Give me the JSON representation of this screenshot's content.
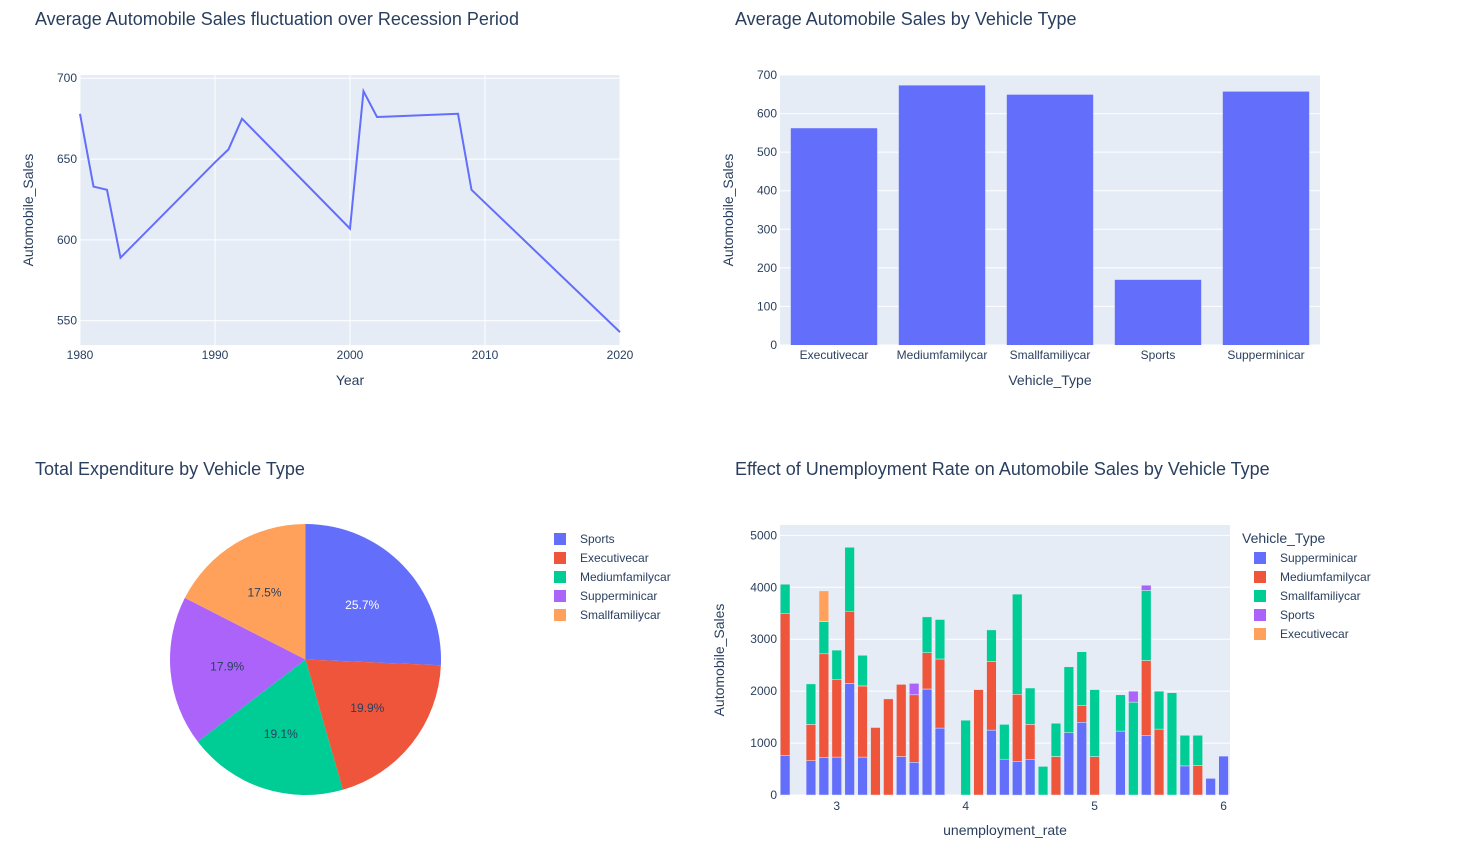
{
  "colors": {
    "plot_bg": "#e5ecf6",
    "grid": "#ffffff",
    "blue": "#636efa",
    "red": "#ef553b",
    "green": "#00cc96",
    "purple": "#ab63fa",
    "orange": "#ffa15a"
  },
  "chart_data": [
    {
      "type": "line",
      "title": "Average Automobile Sales fluctuation over Recession Period",
      "xlabel": "Year",
      "ylabel": "Automobile_Sales",
      "xlim": [
        1980,
        2020
      ],
      "ylim": [
        535,
        702
      ],
      "xticks": [
        1980,
        1990,
        2000,
        2010,
        2020
      ],
      "yticks": [
        550,
        600,
        650,
        700
      ],
      "grid": true,
      "series": [
        {
          "color": "#636efa",
          "x": [
            1980,
            1981,
            1982,
            1983,
            1990,
            1991,
            1992,
            2000,
            2001,
            2002,
            2008,
            2009,
            2020
          ],
          "y": [
            678,
            633,
            631,
            589,
            648,
            656,
            675,
            607,
            692,
            676,
            678,
            631,
            543
          ]
        }
      ]
    },
    {
      "type": "bar",
      "title": "Average Automobile Sales by Vehicle Type",
      "xlabel": "Vehicle_Type",
      "ylabel": "Automobile_Sales",
      "ylim": [
        0,
        700
      ],
      "yticks": [
        0,
        100,
        200,
        300,
        400,
        500,
        600,
        700
      ],
      "grid": true,
      "categories": [
        "Executivecar",
        "Mediumfamilycar",
        "Smallfamiliycar",
        "Sports",
        "Supperminicar"
      ],
      "values": [
        562,
        673,
        649,
        169,
        657
      ],
      "color": "#636efa"
    },
    {
      "type": "pie",
      "title": "Total Expenditure by Vehicle Type",
      "legend_position": "right",
      "labels": [
        "Sports",
        "Executivecar",
        "Mediumfamilycar",
        "Supperminicar",
        "Smallfamiliycar"
      ],
      "values": [
        25.7,
        19.9,
        19.1,
        17.9,
        17.5
      ],
      "colors": [
        "#636efa",
        "#ef553b",
        "#00cc96",
        "#ab63fa",
        "#ffa15a"
      ],
      "slice_labels": [
        "25.7%",
        "19.9%",
        "19.1%",
        "17.9%",
        "17.5%"
      ]
    },
    {
      "type": "bar",
      "stacked": true,
      "title": "Effect of Unemployment Rate on Automobile Sales by Vehicle Type",
      "xlabel": "unemployment_rate",
      "ylabel": "Automobile_Sales",
      "xlim": [
        2.56,
        6.05
      ],
      "ylim": [
        0,
        5200
      ],
      "xticks": [
        3,
        4,
        5,
        6
      ],
      "yticks": [
        0,
        1000,
        2000,
        3000,
        4000,
        5000
      ],
      "bar_width": 0.075,
      "legend_title": "Vehicle_Type",
      "legend_position": "right",
      "legend": [
        "Supperminicar",
        "Mediumfamilycar",
        "Smallfamiliycar",
        "Sports",
        "Executivecar"
      ],
      "legend_colors": [
        "#636efa",
        "#ef553b",
        "#00cc96",
        "#ab63fa",
        "#ffa15a"
      ],
      "colors_by_type": {
        "Supperminicar": "#636efa",
        "Mediumfamilycar": "#ef553b",
        "Smallfamiliycar": "#00cc96",
        "Sports": "#ab63fa",
        "Executivecar": "#ffa15a"
      },
      "bars": [
        {
          "x": 2.6,
          "stacks": [
            [
              "Supperminicar",
              760
            ],
            [
              "Mediumfamilycar",
              2740
            ],
            [
              "Smallfamiliycar",
              560
            ]
          ]
        },
        {
          "x": 2.8,
          "stacks": [
            [
              "Supperminicar",
              660
            ],
            [
              "Mediumfamilycar",
              700
            ],
            [
              "Smallfamiliycar",
              780
            ]
          ]
        },
        {
          "x": 2.9,
          "stacks": [
            [
              "Supperminicar",
              720
            ],
            [
              "Mediumfamilycar",
              2000
            ],
            [
              "Smallfamiliycar",
              620
            ],
            [
              "Executivecar",
              590
            ]
          ]
        },
        {
          "x": 3.0,
          "stacks": [
            [
              "Supperminicar",
              730
            ],
            [
              "Mediumfamilycar",
              1490
            ],
            [
              "Smallfamiliycar",
              570
            ]
          ]
        },
        {
          "x": 3.1,
          "stacks": [
            [
              "Supperminicar",
              2150
            ],
            [
              "Mediumfamilycar",
              1390
            ],
            [
              "Smallfamiliycar",
              1230
            ]
          ]
        },
        {
          "x": 3.2,
          "stacks": [
            [
              "Supperminicar",
              730
            ],
            [
              "Mediumfamilycar",
              1370
            ],
            [
              "Smallfamiliycar",
              590
            ]
          ]
        },
        {
          "x": 3.3,
          "stacks": [
            [
              "Mediumfamilycar",
              1300
            ]
          ]
        },
        {
          "x": 3.4,
          "stacks": [
            [
              "Mediumfamilycar",
              1850
            ]
          ]
        },
        {
          "x": 3.5,
          "stacks": [
            [
              "Supperminicar",
              740
            ],
            [
              "Mediumfamilycar",
              1390
            ]
          ]
        },
        {
          "x": 3.6,
          "stacks": [
            [
              "Supperminicar",
              630
            ],
            [
              "Mediumfamilycar",
              1300
            ],
            [
              "Sports",
              220
            ]
          ]
        },
        {
          "x": 3.7,
          "stacks": [
            [
              "Supperminicar",
              2040
            ],
            [
              "Mediumfamilycar",
              700
            ],
            [
              "Smallfamiliycar",
              690
            ]
          ]
        },
        {
          "x": 3.8,
          "stacks": [
            [
              "Supperminicar",
              1290
            ],
            [
              "Mediumfamilycar",
              1330
            ],
            [
              "Smallfamiliycar",
              760
            ]
          ]
        },
        {
          "x": 4.0,
          "stacks": [
            [
              "Smallfamiliycar",
              1440
            ]
          ]
        },
        {
          "x": 4.1,
          "stacks": [
            [
              "Mediumfamilycar",
              2030
            ]
          ]
        },
        {
          "x": 4.2,
          "stacks": [
            [
              "Supperminicar",
              1250
            ],
            [
              "Mediumfamilycar",
              1320
            ],
            [
              "Smallfamiliycar",
              610
            ]
          ]
        },
        {
          "x": 4.3,
          "stacks": [
            [
              "Supperminicar",
              690
            ],
            [
              "Smallfamiliycar",
              670
            ]
          ]
        },
        {
          "x": 4.4,
          "stacks": [
            [
              "Supperminicar",
              650
            ],
            [
              "Mediumfamilycar",
              1290
            ],
            [
              "Smallfamiliycar",
              1930
            ]
          ]
        },
        {
          "x": 4.5,
          "stacks": [
            [
              "Supperminicar",
              680
            ],
            [
              "Mediumfamilycar",
              680
            ],
            [
              "Smallfamiliycar",
              700
            ]
          ]
        },
        {
          "x": 4.6,
          "stacks": [
            [
              "Smallfamiliycar",
              550
            ]
          ]
        },
        {
          "x": 4.7,
          "stacks": [
            [
              "Mediumfamilycar",
              740
            ],
            [
              "Smallfamiliycar",
              640
            ]
          ]
        },
        {
          "x": 4.8,
          "stacks": [
            [
              "Supperminicar",
              1200
            ],
            [
              "Smallfamiliycar",
              1270
            ]
          ]
        },
        {
          "x": 4.9,
          "stacks": [
            [
              "Supperminicar",
              1400
            ],
            [
              "Mediumfamilycar",
              320
            ],
            [
              "Smallfamiliycar",
              1040
            ]
          ]
        },
        {
          "x": 5.0,
          "stacks": [
            [
              "Mediumfamilycar",
              740
            ],
            [
              "Smallfamiliycar",
              1290
            ]
          ]
        },
        {
          "x": 5.2,
          "stacks": [
            [
              "Supperminicar",
              1230
            ],
            [
              "Smallfamiliycar",
              700
            ]
          ]
        },
        {
          "x": 5.3,
          "stacks": [
            [
              "Smallfamiliycar",
              1790
            ],
            [
              "Sports",
              210
            ]
          ]
        },
        {
          "x": 5.4,
          "stacks": [
            [
              "Supperminicar",
              1150
            ],
            [
              "Mediumfamilycar",
              1440
            ],
            [
              "Smallfamiliycar",
              1350
            ],
            [
              "Sports",
              100
            ]
          ]
        },
        {
          "x": 5.5,
          "stacks": [
            [
              "Mediumfamilycar",
              1270
            ],
            [
              "Smallfamiliycar",
              730
            ]
          ]
        },
        {
          "x": 5.6,
          "stacks": [
            [
              "Smallfamiliycar",
              1970
            ]
          ]
        },
        {
          "x": 5.7,
          "stacks": [
            [
              "Supperminicar",
              560
            ],
            [
              "Smallfamiliycar",
              590
            ]
          ]
        },
        {
          "x": 5.8,
          "stacks": [
            [
              "Mediumfamilycar",
              570
            ],
            [
              "Smallfamiliycar",
              580
            ]
          ]
        },
        {
          "x": 5.9,
          "stacks": [
            [
              "Supperminicar",
              320
            ]
          ]
        },
        {
          "x": 6.0,
          "stacks": [
            [
              "Supperminicar",
              750
            ]
          ]
        }
      ]
    }
  ]
}
